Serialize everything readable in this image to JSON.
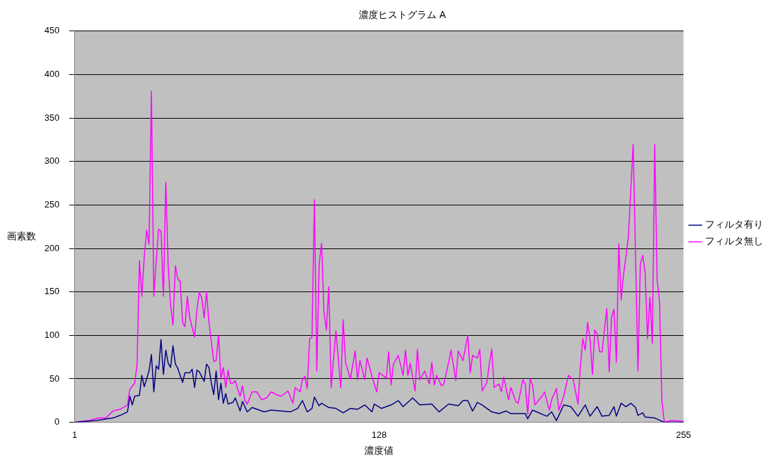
{
  "chart_data": {
    "type": "line",
    "title": "濃度ヒストグラム A",
    "xlabel": "濃度値",
    "ylabel": "画素数",
    "xlim": [
      1,
      255
    ],
    "xticks": [
      1,
      128,
      255
    ],
    "ylim": [
      0,
      450
    ],
    "yticks": [
      0,
      50,
      100,
      150,
      200,
      250,
      300,
      350,
      400,
      450
    ],
    "grid": "y",
    "legend": "right",
    "marker": "none",
    "line_style": "solid",
    "series": [
      {
        "name": "フィルタ有り",
        "color": "#000080",
        "x": [
          1,
          10,
          17,
          20,
          23,
          24,
          25,
          26,
          28,
          29,
          30,
          32,
          33,
          34,
          35,
          36,
          37,
          38,
          39,
          40,
          41,
          42,
          43,
          44,
          46,
          47,
          49,
          50,
          51,
          52,
          53,
          55,
          56,
          57,
          58,
          59,
          60,
          61,
          62,
          63,
          64,
          65,
          67,
          68,
          70,
          71,
          73,
          75,
          78,
          80,
          83,
          87,
          91,
          94,
          96,
          98,
          100,
          101,
          103,
          104,
          107,
          110,
          113,
          116,
          119,
          122,
          125,
          126,
          129,
          133,
          136,
          138,
          142,
          145,
          150,
          153,
          157,
          161,
          163,
          165,
          167,
          169,
          171,
          175,
          178,
          181,
          183,
          189,
          190,
          192,
          198,
          200,
          202,
          205,
          208,
          211,
          214,
          216,
          219,
          221,
          224,
          226,
          227,
          229,
          231,
          233,
          235,
          236,
          238,
          239,
          243,
          247,
          255
        ],
        "values": [
          0,
          2,
          5,
          8,
          12,
          30,
          20,
          30,
          31,
          54,
          41,
          59,
          78,
          35,
          65,
          61,
          95,
          55,
          83,
          68,
          63,
          88,
          67,
          62,
          46,
          57,
          57,
          61,
          40,
          60,
          58,
          47,
          67,
          63,
          45,
          32,
          59,
          26,
          45,
          22,
          33,
          21,
          23,
          28,
          13,
          24,
          12,
          17,
          14,
          12,
          14,
          13,
          12,
          16,
          25,
          12,
          16,
          29,
          19,
          22,
          17,
          16,
          11,
          16,
          15,
          20,
          12,
          21,
          16,
          20,
          25,
          18,
          28,
          20,
          21,
          12,
          21,
          19,
          25,
          25,
          13,
          23,
          20,
          12,
          10,
          13,
          10,
          10,
          4,
          14,
          7,
          12,
          2,
          20,
          18,
          7,
          20,
          7,
          18,
          7,
          8,
          18,
          7,
          22,
          18,
          22,
          17,
          8,
          11,
          6,
          5,
          0,
          0
        ]
      },
      {
        "name": "フィルタ無し",
        "color": "#ff00ff",
        "x": [
          1,
          7,
          11,
          14,
          17,
          20,
          23,
          24,
          26,
          27,
          28,
          29,
          30,
          31,
          32,
          33,
          34,
          35,
          36,
          37,
          38,
          39,
          40,
          41,
          42,
          43,
          44,
          45,
          46,
          47,
          48,
          49,
          51,
          52,
          53,
          54,
          55,
          56,
          57,
          59,
          60,
          61,
          62,
          63,
          64,
          65,
          66,
          67,
          68,
          69,
          70,
          71,
          72,
          73,
          75,
          77,
          79,
          81,
          83,
          85,
          87,
          90,
          92,
          93,
          95,
          96,
          97,
          98,
          99,
          100,
          101,
          102,
          103,
          104,
          105,
          106,
          107,
          108,
          110,
          112,
          113,
          114,
          116,
          118,
          119,
          120,
          122,
          123,
          125,
          127,
          128,
          131,
          132,
          133,
          134,
          136,
          138,
          139,
          140,
          141,
          143,
          144,
          145,
          147,
          149,
          150,
          151,
          152,
          154,
          155,
          157,
          158,
          160,
          161,
          163,
          165,
          166,
          167,
          169,
          170,
          171,
          173,
          174,
          175,
          176,
          178,
          179,
          180,
          182,
          183,
          185,
          186,
          188,
          189,
          190,
          191,
          192,
          193,
          196,
          197,
          199,
          200,
          202,
          203,
          205,
          207,
          209,
          211,
          212,
          213,
          214,
          215,
          216,
          217,
          218,
          219,
          220,
          221,
          223,
          224,
          225,
          226,
          227,
          228,
          229,
          230,
          231,
          232,
          234,
          236,
          237,
          238,
          239,
          240,
          241,
          242,
          243,
          244,
          245,
          246,
          247,
          250,
          255
        ],
        "values": [
          0,
          2,
          5,
          5,
          13,
          15,
          20,
          38,
          45,
          66,
          186,
          145,
          190,
          221,
          205,
          381,
          145,
          185,
          222,
          220,
          145,
          276,
          180,
          135,
          112,
          180,
          165,
          162,
          115,
          110,
          145,
          120,
          98,
          130,
          150,
          143,
          120,
          150,
          115,
          70,
          71,
          100,
          50,
          63,
          40,
          60,
          45,
          45,
          48,
          38,
          30,
          42,
          25,
          21,
          35,
          35,
          26,
          28,
          35,
          32,
          30,
          36,
          22,
          40,
          35,
          49,
          53,
          39,
          96,
          98,
          256,
          59,
          183,
          206,
          127,
          106,
          156,
          40,
          105,
          40,
          118,
          69,
          50,
          82,
          49,
          71,
          49,
          74,
          53,
          35,
          57,
          51,
          81,
          43,
          67,
          77,
          54,
          83,
          54,
          68,
          36,
          84,
          49,
          59,
          44,
          69,
          43,
          54,
          42,
          44,
          69,
          83,
          48,
          82,
          71,
          100,
          57,
          77,
          74,
          84,
          36,
          46,
          68,
          84,
          40,
          44,
          35,
          52,
          26,
          40,
          24,
          22,
          49,
          44,
          9,
          50,
          43,
          20,
          30,
          35,
          14,
          26,
          39,
          14,
          30,
          54,
          49,
          21,
          65,
          96,
          83,
          115,
          96,
          55,
          106,
          102,
          81,
          81,
          131,
          58,
          121,
          130,
          69,
          205,
          141,
          170,
          191,
          213,
          320,
          59,
          182,
          192,
          172,
          96,
          144,
          91,
          320,
          164,
          139,
          24,
          0,
          2,
          1
        ]
      }
    ]
  }
}
